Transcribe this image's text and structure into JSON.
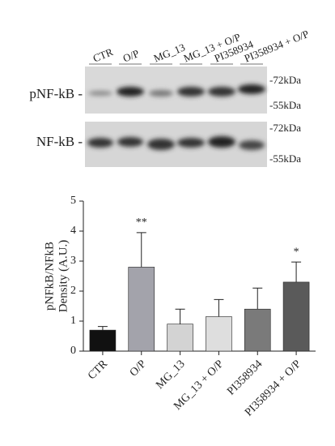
{
  "blot": {
    "lanes": [
      "CTR",
      "O/P",
      "MG_13",
      "MG_13 + O/P",
      "PI358934",
      "PI358934 + O/P"
    ],
    "rows": [
      {
        "label": "pNF-kB -",
        "markers": [
          "-72kDa",
          "-55kDa"
        ]
      },
      {
        "label": "NF-kB -",
        "markers": [
          "-72kDa",
          "-55kDa"
        ]
      }
    ]
  },
  "chart_data": {
    "type": "bar",
    "ylabel": [
      "pNFkB/NFkB",
      "Density (A.U.)"
    ],
    "categories": [
      "CTR",
      "O/P",
      "MG_13",
      "MG_13 + O/P",
      "PI358934",
      "PI358934 + O/P"
    ],
    "values": [
      0.7,
      2.8,
      0.9,
      1.15,
      1.4,
      2.3
    ],
    "errors": [
      0.12,
      1.15,
      0.5,
      0.57,
      0.7,
      0.67
    ],
    "colors": [
      "#111111",
      "#a3a3ab",
      "#d3d3d3",
      "#dedede",
      "#7a7a7a",
      "#5a5a5a"
    ],
    "annotations": [
      {
        "category": "O/P",
        "text": "**"
      },
      {
        "category": "PI358934 + O/P",
        "text": "*"
      }
    ],
    "ylim": [
      0,
      5
    ],
    "yticks": [
      0,
      1,
      2,
      3,
      4,
      5
    ]
  }
}
